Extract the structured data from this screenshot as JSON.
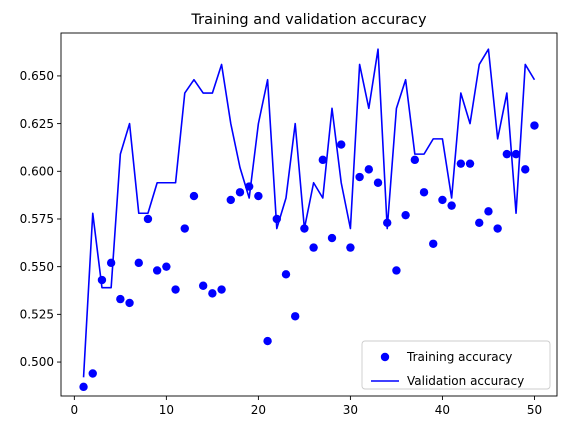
{
  "chart_data": {
    "type": "scatter",
    "title": "Training and validation accuracy",
    "xlabel": "",
    "ylabel": "",
    "xlim": [
      -1.45,
      52.45
    ],
    "ylim": [
      0.4822,
      0.6725
    ],
    "xticks": [
      0,
      10,
      20,
      30,
      40,
      50
    ],
    "yticks": [
      0.5,
      0.525,
      0.55,
      0.575,
      0.6,
      0.625,
      0.65
    ],
    "ytick_labels": [
      "0.500",
      "0.525",
      "0.550",
      "0.575",
      "0.600",
      "0.625",
      "0.650"
    ],
    "grid": false,
    "legend_position": "lower-right",
    "colors": {
      "series": "#0000ff"
    },
    "series": [
      {
        "name": "Training accuracy",
        "style": "points",
        "x": [
          1,
          2,
          3,
          4,
          5,
          6,
          7,
          8,
          9,
          10,
          11,
          12,
          13,
          14,
          15,
          16,
          17,
          18,
          19,
          20,
          21,
          22,
          23,
          24,
          25,
          26,
          27,
          28,
          29,
          30,
          31,
          32,
          33,
          34,
          35,
          36,
          37,
          38,
          39,
          40,
          41,
          42,
          43,
          44,
          45,
          46,
          47,
          48,
          49,
          50
        ],
        "values": [
          0.487,
          0.494,
          0.543,
          0.552,
          0.533,
          0.531,
          0.552,
          0.575,
          0.548,
          0.55,
          0.538,
          0.57,
          0.587,
          0.54,
          0.536,
          0.538,
          0.585,
          0.589,
          0.592,
          0.587,
          0.511,
          0.575,
          0.546,
          0.524,
          0.57,
          0.56,
          0.606,
          0.565,
          0.614,
          0.56,
          0.597,
          0.601,
          0.594,
          0.573,
          0.548,
          0.577,
          0.606,
          0.589,
          0.562,
          0.585,
          0.582,
          0.604,
          0.604,
          0.573,
          0.579,
          0.57,
          0.609,
          0.609,
          0.601,
          0.624
        ]
      },
      {
        "name": "Validation accuracy",
        "style": "line",
        "x": [
          1,
          2,
          3,
          4,
          5,
          6,
          7,
          8,
          9,
          10,
          11,
          12,
          13,
          14,
          15,
          16,
          17,
          18,
          19,
          20,
          21,
          22,
          23,
          24,
          25,
          26,
          27,
          28,
          29,
          30,
          31,
          32,
          33,
          34,
          35,
          36,
          37,
          38,
          39,
          40,
          41,
          42,
          43,
          44,
          45,
          46,
          47,
          48,
          49,
          50
        ],
        "values": [
          0.492,
          0.578,
          0.539,
          0.539,
          0.609,
          0.625,
          0.578,
          0.578,
          0.594,
          0.594,
          0.594,
          0.641,
          0.648,
          0.641,
          0.641,
          0.656,
          0.625,
          0.602,
          0.586,
          0.625,
          0.648,
          0.57,
          0.586,
          0.625,
          0.57,
          0.594,
          0.586,
          0.633,
          0.594,
          0.57,
          0.656,
          0.633,
          0.664,
          0.57,
          0.633,
          0.648,
          0.609,
          0.609,
          0.617,
          0.617,
          0.586,
          0.641,
          0.625,
          0.656,
          0.664,
          0.617,
          0.641,
          0.578,
          0.656,
          0.648
        ]
      }
    ]
  }
}
